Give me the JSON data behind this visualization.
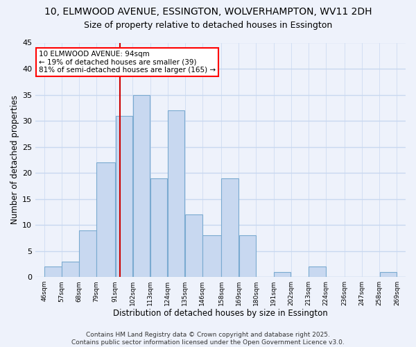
{
  "title": "10, ELMWOOD AVENUE, ESSINGTON, WOLVERHAMPTON, WV11 2DH",
  "subtitle": "Size of property relative to detached houses in Essington",
  "xlabel": "Distribution of detached houses by size in Essington",
  "ylabel": "Number of detached properties",
  "bins": [
    46,
    57,
    68,
    79,
    91,
    102,
    113,
    124,
    135,
    146,
    158,
    169,
    180,
    191,
    202,
    213,
    224,
    236,
    247,
    258,
    269
  ],
  "bin_labels": [
    "46sqm",
    "57sqm",
    "68sqm",
    "79sqm",
    "91sqm",
    "102sqm",
    "113sqm",
    "124sqm",
    "135sqm",
    "146sqm",
    "158sqm",
    "169sqm",
    "180sqm",
    "191sqm",
    "202sqm",
    "213sqm",
    "224sqm",
    "236sqm",
    "247sqm",
    "258sqm",
    "269sqm"
  ],
  "counts": [
    2,
    3,
    9,
    22,
    31,
    35,
    19,
    32,
    12,
    8,
    19,
    8,
    0,
    1,
    0,
    2,
    0,
    0,
    0,
    1,
    0
  ],
  "bar_color": "#c8d8f0",
  "bar_edgecolor": "#7aaad0",
  "grid_color": "#c8d8f0",
  "background_color": "#eef2fb",
  "vline_x": 94,
  "vline_color": "#cc0000",
  "annotation_text": "10 ELMWOOD AVENUE: 94sqm\n← 19% of detached houses are smaller (39)\n81% of semi-detached houses are larger (165) →",
  "ylim": [
    0,
    45
  ],
  "yticks": [
    0,
    5,
    10,
    15,
    20,
    25,
    30,
    35,
    40,
    45
  ],
  "footer_text": "Contains HM Land Registry data © Crown copyright and database right 2025.\nContains public sector information licensed under the Open Government Licence v3.0.",
  "title_fontsize": 10,
  "subtitle_fontsize": 9,
  "xlabel_fontsize": 8.5,
  "ylabel_fontsize": 8.5,
  "annotation_fontsize": 7.5,
  "footer_fontsize": 6.5
}
